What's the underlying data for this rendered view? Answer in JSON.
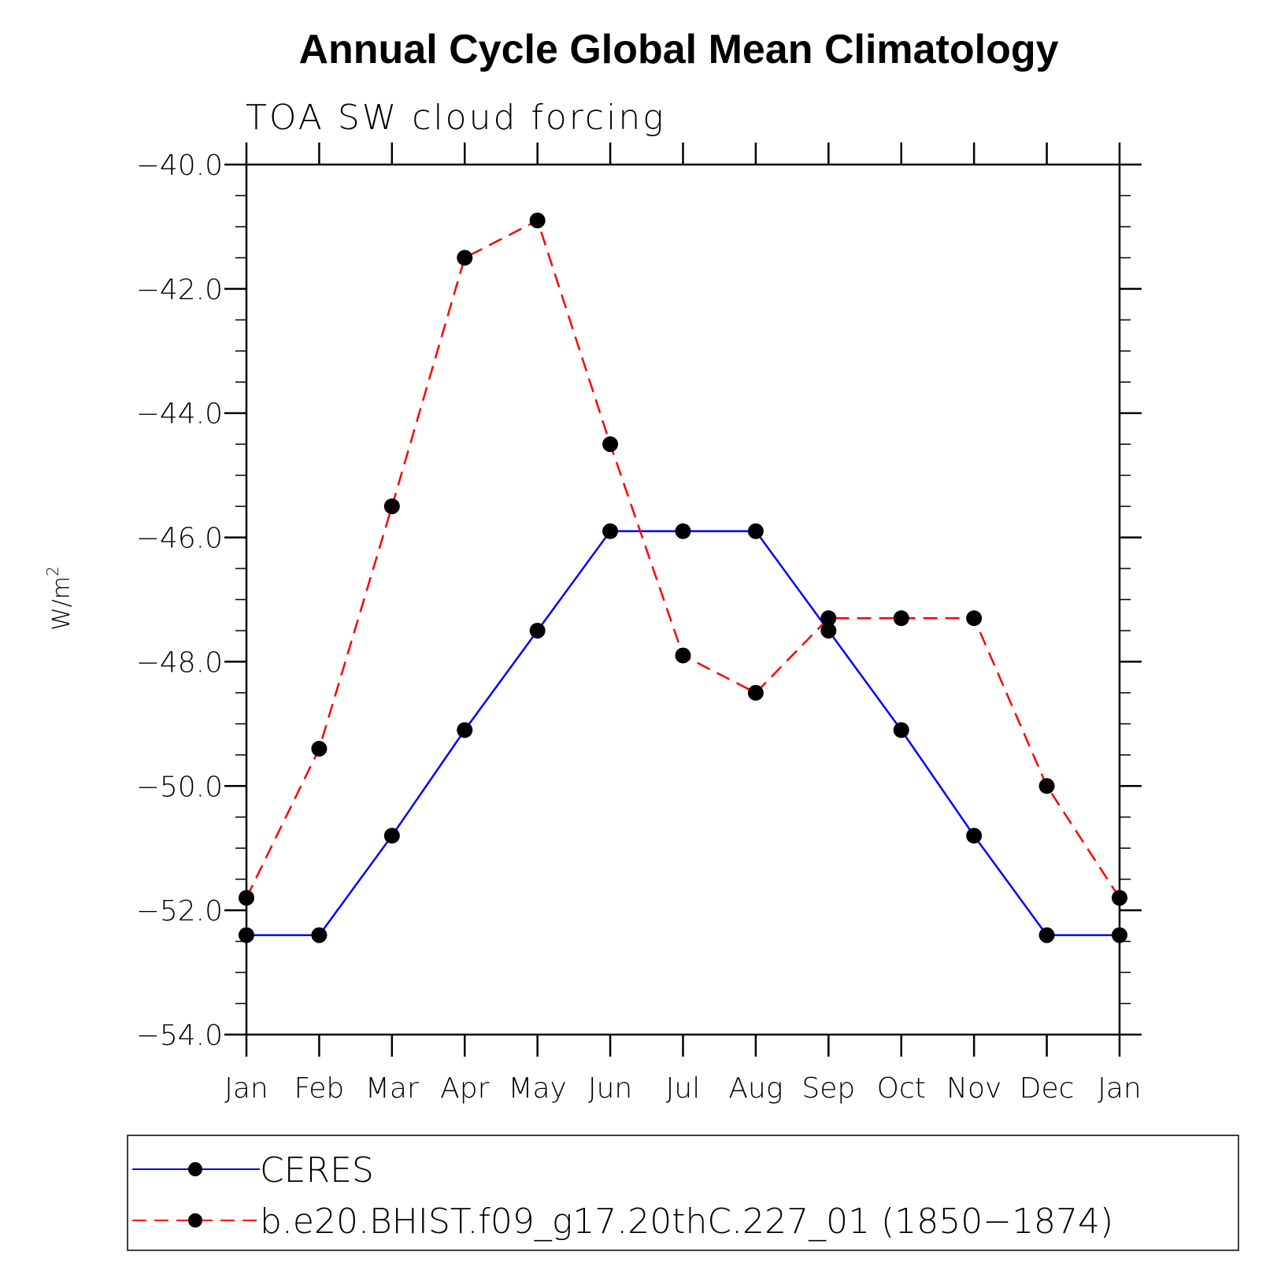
{
  "chart_data": {
    "type": "line",
    "title": "Annual Cycle Global Mean Climatology",
    "subtitle": "TOA SW cloud forcing",
    "ylabel": "W/m",
    "ylabel_superscript": "2",
    "xlabel": "",
    "categories": [
      "Jan",
      "Feb",
      "Mar",
      "Apr",
      "May",
      "Jun",
      "Jul",
      "Aug",
      "Sep",
      "Oct",
      "Nov",
      "Dec",
      "Jan"
    ],
    "ylim": [
      -54.0,
      -40.0
    ],
    "yticks": [
      "-40.0",
      "-42.0",
      "-44.0",
      "-46.0",
      "-48.0",
      "-50.0",
      "-52.0",
      "-54.0"
    ],
    "ytick_values": [
      -40,
      -42,
      -44,
      -46,
      -48,
      -50,
      -52,
      -54
    ],
    "grid": false,
    "legend_position": "bottom",
    "series": [
      {
        "name": "CERES",
        "color": "#0000ff",
        "style": "solid",
        "marker": "filled-circle",
        "values": [
          -52.4,
          -52.4,
          -50.8,
          -49.1,
          -47.5,
          -45.9,
          -45.9,
          -45.9,
          -47.5,
          -49.1,
          -50.8,
          -52.4,
          -52.4
        ]
      },
      {
        "name": "b.e20.BHIST.f09_g17.20thC.227_01 (1850−1874)",
        "color": "#ff0000",
        "style": "dashed",
        "marker": "filled-circle",
        "values": [
          -51.8,
          -49.4,
          -45.5,
          -41.5,
          -40.9,
          -44.5,
          -47.9,
          -48.5,
          -47.3,
          -47.3,
          -47.3,
          -50.0,
          -51.8
        ]
      }
    ]
  }
}
